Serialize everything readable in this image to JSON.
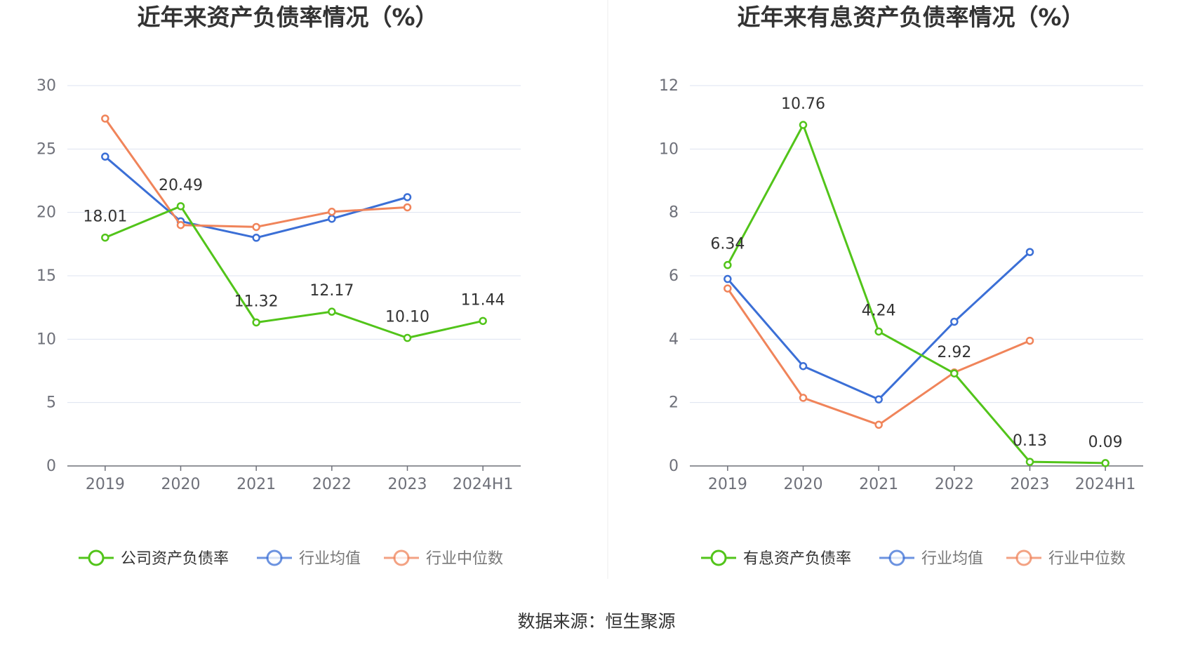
{
  "source_label": "数据来源：恒生聚源",
  "chart_data": [
    {
      "type": "line",
      "title": "近年来资产负债率情况（%）",
      "categories": [
        "2019",
        "2020",
        "2021",
        "2022",
        "2023",
        "2024H1"
      ],
      "ylim": [
        0,
        30
      ],
      "yticks": [
        0,
        5,
        10,
        15,
        20,
        25,
        30
      ],
      "grid": true,
      "legend_position": "bottom",
      "series": [
        {
          "name": "公司资产负债率",
          "color": "#52c41a",
          "labels": true,
          "values": [
            18.01,
            20.49,
            11.32,
            12.17,
            10.1,
            11.44
          ],
          "value_labels": [
            "18.01",
            "20.49",
            "11.32",
            "12.17",
            "10.10",
            "11.44"
          ]
        },
        {
          "name": "行业均值",
          "color": "#3b6fd6",
          "labels": false,
          "values": [
            24.4,
            19.3,
            18.0,
            19.5,
            21.2,
            null
          ]
        },
        {
          "name": "行业中位数",
          "color": "#f0845a",
          "labels": false,
          "values": [
            27.4,
            19.0,
            18.85,
            20.05,
            20.4,
            null
          ]
        }
      ]
    },
    {
      "type": "line",
      "title": "近年来有息资产负债率情况（%）",
      "categories": [
        "2019",
        "2020",
        "2021",
        "2022",
        "2023",
        "2024H1"
      ],
      "ylim": [
        0,
        12
      ],
      "yticks": [
        0,
        2,
        4,
        6,
        8,
        10,
        12
      ],
      "grid": true,
      "legend_position": "bottom",
      "series": [
        {
          "name": "有息资产负债率",
          "color": "#52c41a",
          "labels": true,
          "values": [
            6.34,
            10.76,
            4.24,
            2.92,
            0.13,
            0.09
          ],
          "value_labels": [
            "6.34",
            "10.76",
            "4.24",
            "2.92",
            "0.13",
            "0.09"
          ]
        },
        {
          "name": "行业均值",
          "color": "#3b6fd6",
          "labels": false,
          "values": [
            5.9,
            3.15,
            2.1,
            4.55,
            6.75,
            null
          ]
        },
        {
          "name": "行业中位数",
          "color": "#f0845a",
          "labels": false,
          "values": [
            5.6,
            2.15,
            1.3,
            2.95,
            3.95,
            null
          ]
        }
      ]
    }
  ]
}
